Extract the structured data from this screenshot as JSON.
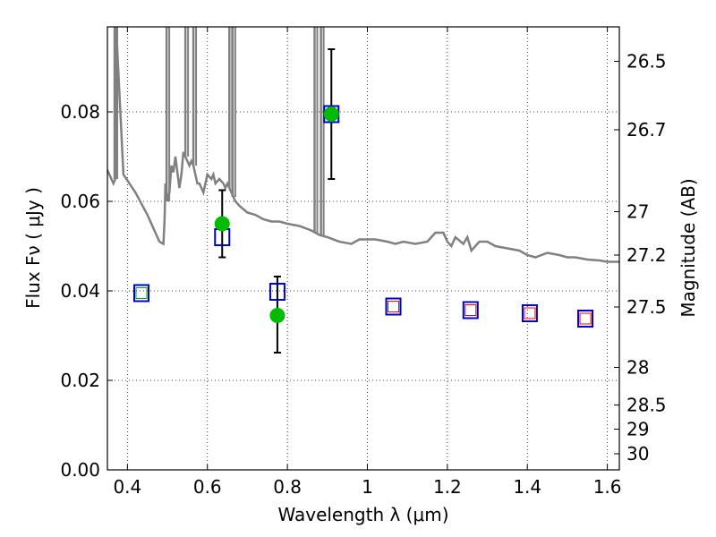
{
  "chart_data": {
    "type": "scatter",
    "xlabel": "Wavelength  λ (μm)",
    "ylabel": "Flux  Fν  ( μJy )",
    "ylabel_right": "Magnitude (AB)",
    "xlim": [
      0.35,
      1.63
    ],
    "ylim": [
      0.0,
      0.099
    ],
    "grid": true,
    "x_ticks": [
      0.4,
      0.6,
      0.8,
      1.0,
      1.2,
      1.4,
      1.6
    ],
    "x_tick_labels": [
      "0.4",
      "0.6",
      "0.8",
      "1",
      "1.2",
      "1.4",
      "1.6"
    ],
    "y_ticks": [
      0.0,
      0.02,
      0.04,
      0.06,
      0.08
    ],
    "y_tick_labels": [
      "0.00",
      "0.02",
      "0.04",
      "0.06",
      "0.08"
    ],
    "right_ticks": [
      {
        "label": "26.5",
        "flux": 0.0913
      },
      {
        "label": "26.7",
        "flux": 0.076
      },
      {
        "label": "27",
        "flux": 0.0577
      },
      {
        "label": "27.2",
        "flux": 0.048
      },
      {
        "label": "27.5",
        "flux": 0.0364
      },
      {
        "label": "28",
        "flux": 0.0229
      },
      {
        "label": "28.5",
        "flux": 0.0145
      },
      {
        "label": "29",
        "flux": 0.0091
      },
      {
        "label": "30",
        "flux": 0.0036
      }
    ],
    "series": [
      {
        "role": "model-spectrum",
        "color": "#808080",
        "x": [
          0.35,
          0.365,
          0.37,
          0.372,
          0.39,
          0.42,
          0.45,
          0.48,
          0.49,
          0.493,
          0.495,
          0.5,
          0.505,
          0.51,
          0.515,
          0.52,
          0.53,
          0.535,
          0.54,
          0.545,
          0.55,
          0.555,
          0.56,
          0.565,
          0.57,
          0.575,
          0.58,
          0.59,
          0.6,
          0.61,
          0.615,
          0.62,
          0.63,
          0.64,
          0.645,
          0.65,
          0.655,
          0.66,
          0.665,
          0.67,
          0.68,
          0.7,
          0.72,
          0.74,
          0.76,
          0.78,
          0.8,
          0.83,
          0.86,
          0.87,
          0.88,
          0.9,
          0.93,
          0.96,
          0.98,
          1.0,
          1.02,
          1.05,
          1.07,
          1.09,
          1.12,
          1.15,
          1.17,
          1.19,
          1.2,
          1.21,
          1.22,
          1.24,
          1.25,
          1.26,
          1.28,
          1.3,
          1.32,
          1.35,
          1.38,
          1.4,
          1.42,
          1.45,
          1.48,
          1.5,
          1.52,
          1.55,
          1.58,
          1.6,
          1.63
        ],
        "y": [
          0.067,
          0.064,
          0.065,
          0.099,
          0.066,
          0.062,
          0.057,
          0.051,
          0.0505,
          0.056,
          0.064,
          0.06,
          0.062,
          0.068,
          0.0665,
          0.07,
          0.063,
          0.066,
          0.071,
          0.07,
          0.069,
          0.068,
          0.069,
          0.068,
          0.066,
          0.064,
          0.064,
          0.062,
          0.066,
          0.065,
          0.066,
          0.064,
          0.065,
          0.064,
          0.063,
          0.064,
          0.063,
          0.062,
          0.061,
          0.06,
          0.059,
          0.0575,
          0.057,
          0.056,
          0.0555,
          0.0555,
          0.055,
          0.0545,
          0.0535,
          0.053,
          0.0525,
          0.052,
          0.051,
          0.0505,
          0.0515,
          0.0515,
          0.0515,
          0.051,
          0.0505,
          0.051,
          0.0505,
          0.051,
          0.053,
          0.053,
          0.051,
          0.05,
          0.052,
          0.0505,
          0.052,
          0.049,
          0.051,
          0.051,
          0.05,
          0.0495,
          0.049,
          0.048,
          0.0475,
          0.0485,
          0.048,
          0.0475,
          0.0475,
          0.047,
          0.0468,
          0.0465,
          0.0465
        ]
      }
    ],
    "spikes": [
      {
        "x": 0.368,
        "y": 0.099
      },
      {
        "x": 0.498,
        "y": 0.099
      },
      {
        "x": 0.545,
        "y": 0.099
      },
      {
        "x": 0.565,
        "y": 0.099
      },
      {
        "x": 0.655,
        "y": 0.099
      },
      {
        "x": 0.663,
        "y": 0.099
      },
      {
        "x": 0.868,
        "y": 0.099
      },
      {
        "x": 0.884,
        "y": 0.099
      }
    ],
    "observed": [
      {
        "x": 0.637,
        "y": 0.055,
        "yerr_low": 0.0075,
        "yerr_high": 0.0075
      },
      {
        "x": 0.775,
        "y": 0.0345,
        "yerr_low": 0.0083,
        "yerr_high": 0.0087
      },
      {
        "x": 0.91,
        "y": 0.0795,
        "yerr_low": 0.0145,
        "yerr_high": 0.0145
      }
    ],
    "model_boxes": [
      {
        "x": 0.435,
        "y": 0.0395
      },
      {
        "x": 0.637,
        "y": 0.052
      },
      {
        "x": 0.775,
        "y": 0.0398
      },
      {
        "x": 0.91,
        "y": 0.0795
      },
      {
        "x": 1.065,
        "y": 0.0365
      },
      {
        "x": 1.258,
        "y": 0.0357
      },
      {
        "x": 1.406,
        "y": 0.035
      },
      {
        "x": 1.545,
        "y": 0.0338
      }
    ],
    "inner_boxes": [
      {
        "x": 0.435,
        "y": 0.0395,
        "color": "#00aa00"
      },
      {
        "x": 1.065,
        "y": 0.0365,
        "color": "#ff0000"
      },
      {
        "x": 1.258,
        "y": 0.0357,
        "color": "#ff0000"
      },
      {
        "x": 1.406,
        "y": 0.035,
        "color": "#ff0000"
      },
      {
        "x": 1.545,
        "y": 0.0338,
        "color": "#ff0000"
      }
    ],
    "colors": {
      "observed": "#00bb00",
      "model_box": "#0000cc",
      "error_bar": "#000000",
      "spectrum": "#808080"
    }
  }
}
